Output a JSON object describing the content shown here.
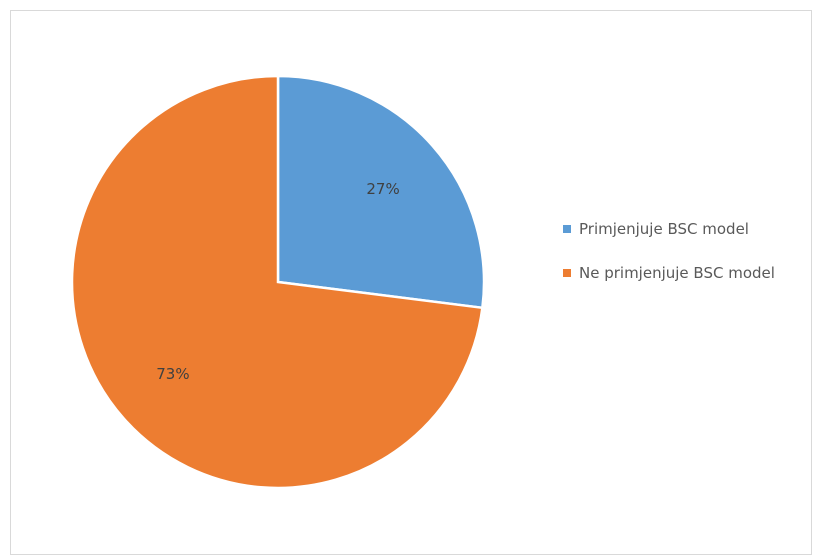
{
  "chart_data": {
    "type": "pie",
    "categories": [
      "Primjenjuje BSC model",
      "Ne primjenjuje BSC model"
    ],
    "values": [
      27,
      73
    ],
    "labels": [
      "27%",
      "73%"
    ],
    "colors": [
      "#5b9bd5",
      "#ed7d31"
    ],
    "legend_position": "right",
    "start_angle": "12 o'clock",
    "direction": "clockwise"
  }
}
